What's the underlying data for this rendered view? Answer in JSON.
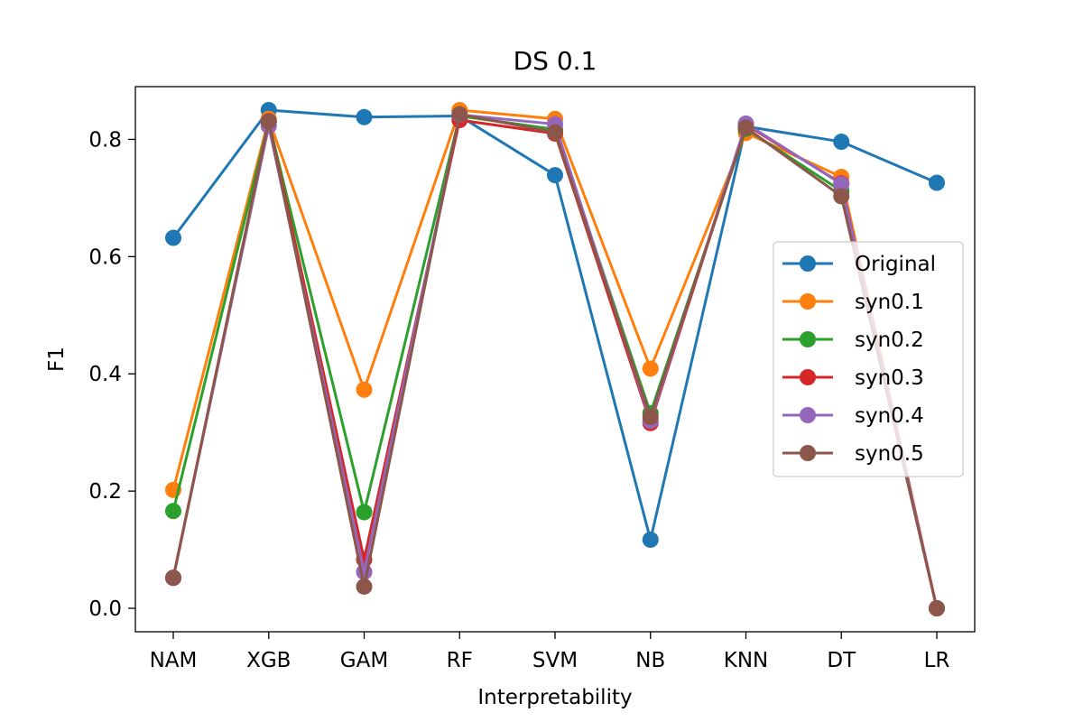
{
  "chart_data": {
    "type": "line",
    "title": "DS 0.1",
    "xlabel": "Interpretability",
    "ylabel": "F1",
    "categories": [
      "NAM",
      "XGB",
      "GAM",
      "RF",
      "SVM",
      "NB",
      "KNN",
      "DT",
      "LR"
    ],
    "ylim": [
      -0.04,
      0.89
    ],
    "yticks": [
      0.0,
      0.2,
      0.4,
      0.6,
      0.8
    ],
    "ytick_labels": [
      "0.0",
      "0.2",
      "0.4",
      "0.6",
      "0.8"
    ],
    "grid": false,
    "legend_position": "center-right",
    "series": [
      {
        "name": "Original",
        "color": "#1f77b4",
        "values": [
          0.632,
          0.85,
          0.838,
          0.84,
          0.739,
          0.117,
          0.822,
          0.796,
          0.726
        ]
      },
      {
        "name": "syn0.1",
        "color": "#ff7f0e",
        "values": [
          0.202,
          0.835,
          0.373,
          0.85,
          0.835,
          0.409,
          0.811,
          0.736,
          0.0
        ]
      },
      {
        "name": "syn0.2",
        "color": "#2ca02c",
        "values": [
          0.166,
          0.83,
          0.164,
          0.84,
          0.817,
          0.333,
          0.818,
          0.712,
          0.0
        ]
      },
      {
        "name": "syn0.3",
        "color": "#d62728",
        "values": [
          0.052,
          0.831,
          0.083,
          0.833,
          0.81,
          0.316,
          0.825,
          0.725,
          0.0
        ]
      },
      {
        "name": "syn0.4",
        "color": "#9467bd",
        "values": [
          0.052,
          0.823,
          0.062,
          0.842,
          0.826,
          0.32,
          0.827,
          0.724,
          0.0
        ]
      },
      {
        "name": "syn0.5",
        "color": "#8c564b",
        "values": [
          0.052,
          0.831,
          0.037,
          0.843,
          0.812,
          0.326,
          0.82,
          0.703,
          0.0
        ]
      }
    ]
  }
}
